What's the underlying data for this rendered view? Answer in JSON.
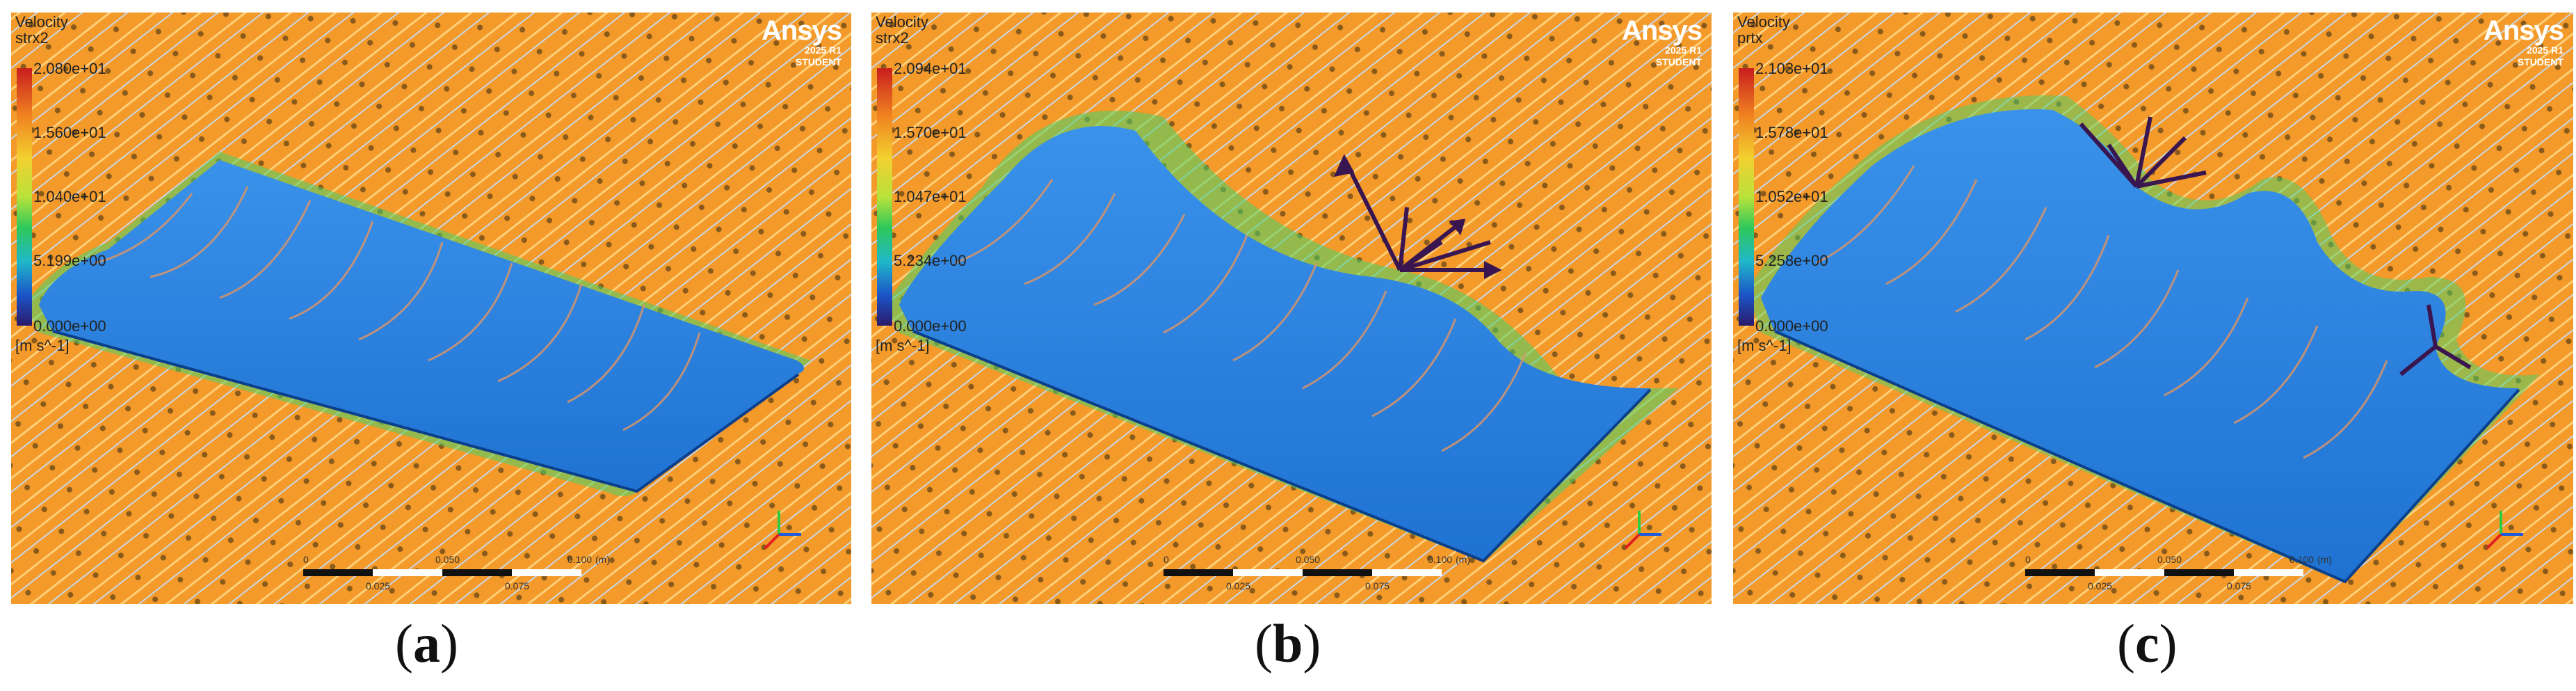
{
  "panels": [
    {
      "id": "a",
      "legend": {
        "title": "Velocity",
        "subtitle": "strx2",
        "max": "2.080e+01",
        "t1": "1.560e+01",
        "t2": "1.040e+01",
        "t3": "5.199e+00",
        "min": "0.000e+00",
        "unit": "[m s^-1]"
      },
      "brand": {
        "name": "Ansys",
        "release": "2025 R1",
        "edition": "STUDENT"
      },
      "scale": {
        "start": "0",
        "a": "0.025",
        "b": "0.050",
        "c": "0.075",
        "end": "0.100",
        "unit": "(m)"
      },
      "caption": {
        "open": "(",
        "letter": "a",
        "close": ")"
      }
    },
    {
      "id": "b",
      "legend": {
        "title": "Velocity",
        "subtitle": "strx2",
        "max": "2.094e+01",
        "t1": "1.570e+01",
        "t2": "1.047e+01",
        "t3": "5.234e+00",
        "min": "0.000e+00",
        "unit": "[m s^-1]"
      },
      "brand": {
        "name": "Ansys",
        "release": "2025 R1",
        "edition": "STUDENT"
      },
      "scale": {
        "start": "0",
        "a": "0.025",
        "b": "0.050",
        "c": "0.075",
        "end": "0.100",
        "unit": "(m)"
      },
      "caption": {
        "open": "(",
        "letter": "b",
        "close": ")"
      }
    },
    {
      "id": "c",
      "legend": {
        "title": "Velocity",
        "subtitle": "prtx",
        "max": "2.103e+01",
        "t1": "1.578e+01",
        "t2": "1.052e+01",
        "t3": "5.258e+00",
        "min": "0.000e+00",
        "unit": "[m s^-1]"
      },
      "brand": {
        "name": "Ansys",
        "release": "2025 R1",
        "edition": "STUDENT"
      },
      "scale": {
        "start": "0",
        "a": "0.025",
        "b": "0.050",
        "c": "0.075",
        "end": "0.100",
        "unit": "(m)"
      },
      "caption": {
        "open": "(",
        "letter": "c",
        "close": ")"
      }
    }
  ],
  "colors": {
    "background_flow": "#f39a2a",
    "wing_surface": "#2f86e0",
    "streamline_light": "#b8cde0",
    "streamline_green": "#39d36a",
    "surface_streamline": "#d88a6a",
    "vortex_vectors": "#3a1650"
  }
}
